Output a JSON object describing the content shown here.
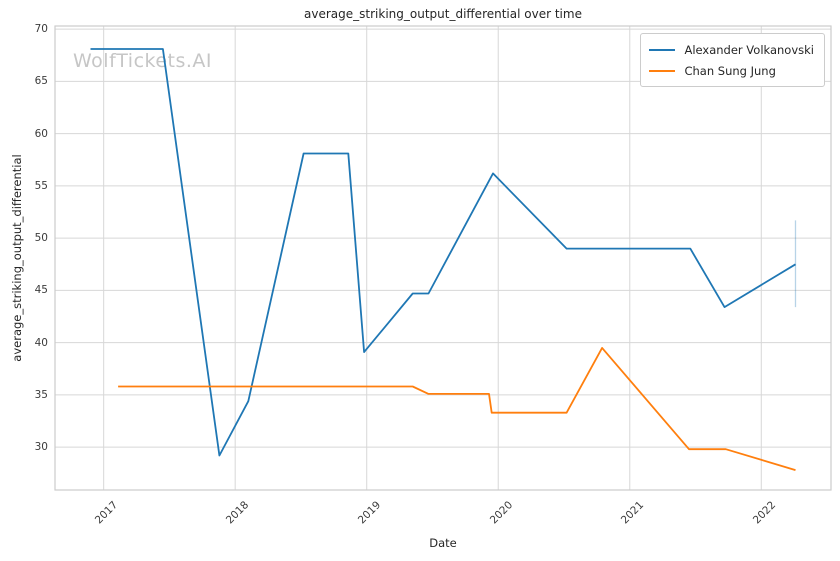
{
  "watermark": {
    "text": "WolfTickets.AI",
    "color": "#c6c6c6"
  },
  "chart_data": {
    "type": "line",
    "title": "average_striking_output_differential over time",
    "xlabel": "Date",
    "ylabel": "average_striking_output_differential",
    "xlim": [
      2016.63,
      2022.53
    ],
    "ylim": [
      25.9,
      70.3
    ],
    "x_ticks": [
      "2017",
      "2018",
      "2019",
      "2020",
      "2021",
      "2022"
    ],
    "y_ticks": [
      "30",
      "35",
      "40",
      "45",
      "50",
      "55",
      "60",
      "65",
      "70"
    ],
    "grid": true,
    "legend_position": "upper right",
    "colors": {
      "grid": "#d7d7d7",
      "spine": "#cccccc",
      "text": "#262626",
      "tick_text": "#3b3b3b"
    },
    "series": [
      {
        "name": "Alexander Volkanovski",
        "color": "#1f77b4",
        "points": [
          [
            2016.9,
            68.1
          ],
          [
            2017.45,
            68.1
          ],
          [
            2017.88,
            29.2
          ],
          [
            2018.1,
            34.4
          ],
          [
            2018.52,
            58.1
          ],
          [
            2018.86,
            58.1
          ],
          [
            2018.98,
            39.1
          ],
          [
            2019.35,
            44.7
          ],
          [
            2019.47,
            44.7
          ],
          [
            2019.96,
            56.2
          ],
          [
            2020.52,
            49.0
          ],
          [
            2021.46,
            49.0
          ],
          [
            2021.72,
            43.4
          ],
          [
            2022.26,
            47.5
          ]
        ]
      },
      {
        "name": "Chan Sung Jung",
        "color": "#ff7f0e",
        "points": [
          [
            2017.11,
            35.8
          ],
          [
            2019.35,
            35.8
          ],
          [
            2019.47,
            35.1
          ],
          [
            2019.93,
            35.1
          ],
          [
            2019.95,
            33.3
          ],
          [
            2020.52,
            33.3
          ],
          [
            2020.79,
            39.5
          ],
          [
            2021.45,
            29.8
          ],
          [
            2021.73,
            29.8
          ],
          [
            2022.26,
            27.8
          ]
        ]
      }
    ],
    "error_bar": {
      "x": 2022.26,
      "y_low": 43.4,
      "y_high": 51.7,
      "color": "#1f77b4",
      "opacity": 0.32
    }
  }
}
